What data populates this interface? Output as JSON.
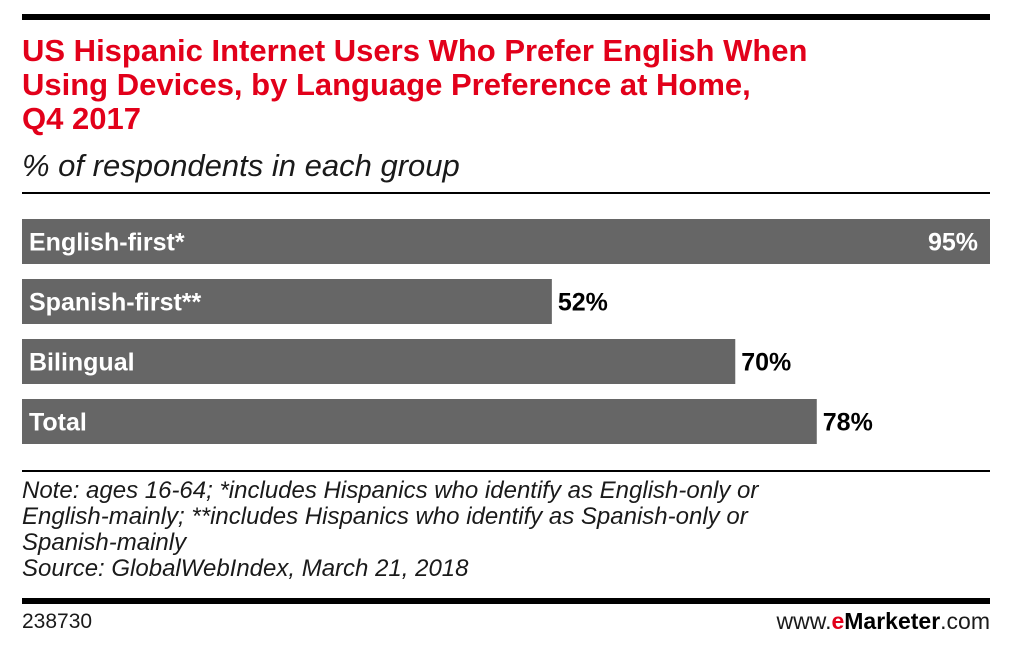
{
  "header": {
    "title_lines": [
      "US Hispanic Internet Users Who Prefer English When",
      "Using Devices, by Language Preference at Home,",
      "Q4 2017"
    ],
    "subtitle": "% of respondents in each group"
  },
  "chart_data": {
    "type": "bar",
    "orientation": "horizontal",
    "categories": [
      "English-first*",
      "Spanish-first**",
      "Bilingual",
      "Total"
    ],
    "values": [
      95,
      52,
      70,
      78
    ],
    "value_labels": [
      "95%",
      "52%",
      "70%",
      "78%"
    ],
    "title": "US Hispanic Internet Users Who Prefer English When Using Devices, by Language Preference at Home, Q4 2017",
    "subtitle": "% of respondents in each group",
    "xlim": [
      0,
      100
    ],
    "bar_color": "#666666",
    "grid": false,
    "legend": "none"
  },
  "footer": {
    "note_lines": [
      "Note: ages 16-64; *includes Hispanics who identify as English-only or",
      "English-mainly; **includes Hispanics who identify as Spanish-only or",
      "Spanish-mainly"
    ],
    "source": "Source: GlobalWebIndex, March 21, 2018",
    "chart_id": "238730",
    "brand": {
      "prefix": "www.",
      "e": "e",
      "name": "Marketer",
      "suffix": ".com"
    }
  },
  "colors": {
    "title": "#e2001a",
    "bar": "#666666",
    "brand_accent": "#e2001a"
  }
}
